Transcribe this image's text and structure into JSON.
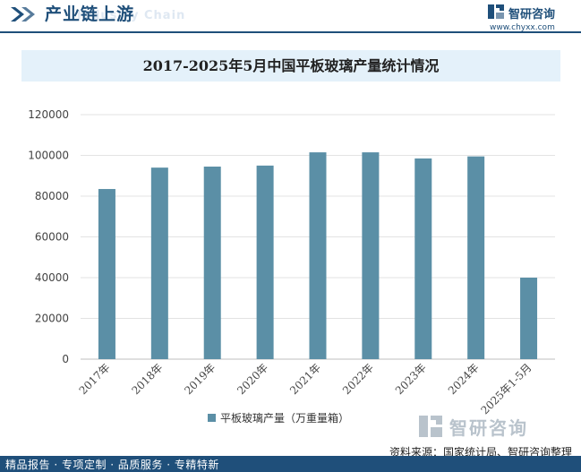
{
  "header": {
    "title": "产业链上游",
    "ghost_text": "Industry Chain",
    "brand_name": "智研咨询",
    "brand_url": "www.chyxx.com"
  },
  "colors": {
    "bar": "#5b8fa6",
    "primary": "#1f4f7a",
    "title_band": "#e4f1fa"
  },
  "chart_data": {
    "type": "bar",
    "title": "2017-2025年5月中国平板玻璃产量统计情况",
    "categories": [
      "2017年",
      "2018年",
      "2019年",
      "2020年",
      "2021年",
      "2022年",
      "2023年",
      "2024年",
      "2025年1-5月"
    ],
    "series": [
      {
        "name": "平板玻璃产量（万重量箱）",
        "values": [
          83500,
          94000,
          94500,
          95000,
          101500,
          101500,
          98500,
          99500,
          40000
        ]
      }
    ],
    "yticks": [
      "0",
      "20000",
      "40000",
      "60000",
      "80000",
      "100000",
      "120000"
    ],
    "ylim": [
      0,
      120000
    ],
    "xlabel": "",
    "ylabel": "",
    "legend": "bottom"
  },
  "source": "资料来源：国家统计局、智研咨询整理",
  "footer": {
    "logo_name": "智研咨询",
    "tagline": "精品报告 · 专项定制 · 品质服务 · 专精特新"
  }
}
